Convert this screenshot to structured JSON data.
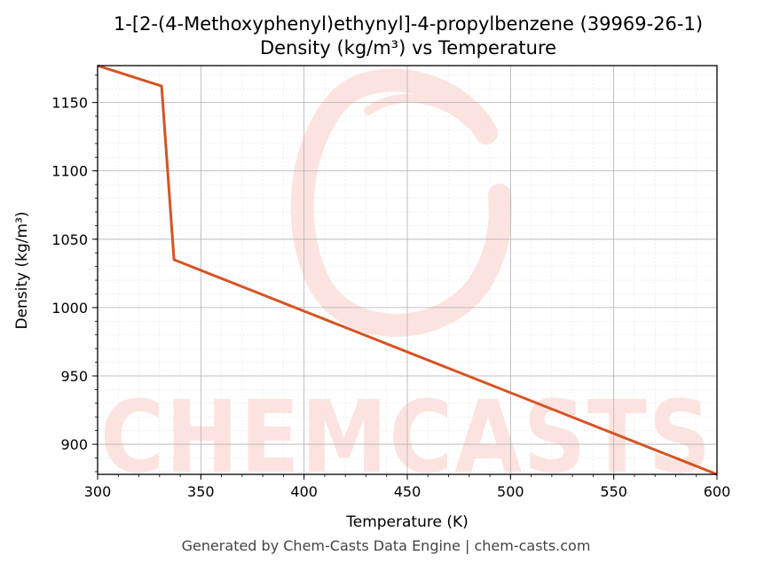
{
  "chart_data": {
    "type": "line",
    "title": "1-[2-(4-Methoxyphenyl)ethynyl]-4-propylbenzene (39969-26-1)",
    "subtitle": "Density (kg/m³) vs Temperature",
    "xlabel": "Temperature (K)",
    "ylabel": "Density (kg/m³)",
    "xlim": [
      300,
      600
    ],
    "ylim": [
      878,
      1177
    ],
    "x_ticks": [
      300,
      350,
      400,
      450,
      500,
      550,
      600
    ],
    "y_ticks": [
      900,
      950,
      1000,
      1050,
      1100,
      1150
    ],
    "grid": true,
    "legend": "none",
    "series": [
      {
        "color": "#d65322",
        "x": [
          300,
          331,
          337,
          600
        ],
        "y": [
          1177,
          1162,
          1035,
          878
        ]
      }
    ]
  },
  "watermark": {
    "text": "CHEMCASTS",
    "color": "#fde3df"
  },
  "footer": "Generated by Chem-Casts Data Engine | chem-casts.com"
}
